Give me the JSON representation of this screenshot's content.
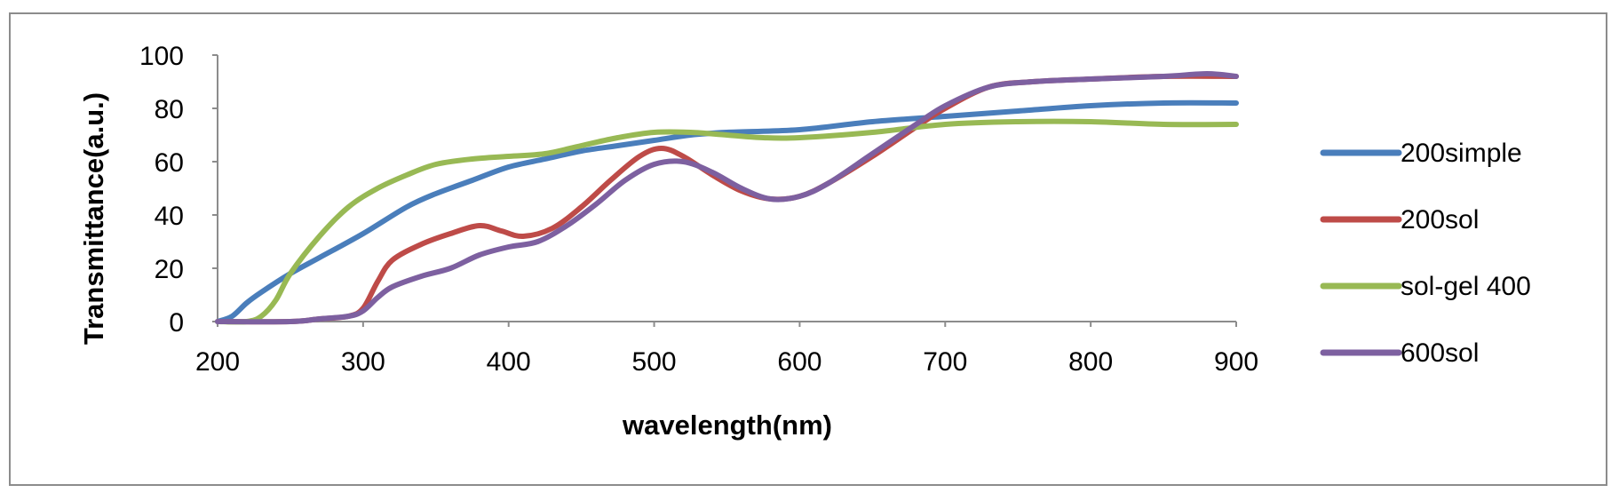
{
  "chart_data": {
    "type": "line",
    "xlabel": "wavelength(nm)",
    "ylabel": "Transmittance(a.u.)",
    "xlim": [
      200,
      900
    ],
    "ylim": [
      0,
      100
    ],
    "x_ticks": [
      200,
      300,
      400,
      500,
      600,
      700,
      800,
      900
    ],
    "y_ticks": [
      0,
      20,
      40,
      60,
      80,
      100
    ],
    "grid": false,
    "legend_position": "right",
    "series": [
      {
        "name": "200simple",
        "color": "#4a7ebb",
        "x": [
          200,
          210,
          220,
          230,
          250,
          270,
          300,
          330,
          350,
          375,
          400,
          425,
          450,
          475,
          500,
          525,
          550,
          600,
          650,
          700,
          750,
          800,
          850,
          900
        ],
        "y": [
          0,
          2,
          7,
          11,
          18,
          24,
          33,
          43,
          48,
          53,
          58,
          61,
          64,
          66,
          68,
          70,
          71,
          72,
          75,
          77,
          79,
          81,
          82,
          82
        ]
      },
      {
        "name": "200sol",
        "color": "#be4b48",
        "x": [
          200,
          250,
          270,
          290,
          300,
          310,
          320,
          340,
          360,
          380,
          395,
          410,
          430,
          450,
          470,
          490,
          505,
          520,
          540,
          560,
          580,
          600,
          620,
          650,
          680,
          700,
          730,
          760,
          800,
          850,
          900
        ],
        "y": [
          0,
          0,
          1,
          2,
          5,
          15,
          23,
          29,
          33,
          36,
          34,
          32,
          35,
          43,
          53,
          62,
          65,
          62,
          55,
          49,
          46,
          47,
          52,
          62,
          73,
          80,
          88,
          90,
          91,
          92,
          92
        ]
      },
      {
        "name": "sol-gel 400",
        "color": "#98b954",
        "x": [
          200,
          220,
          230,
          240,
          250,
          270,
          290,
          310,
          330,
          350,
          375,
          400,
          425,
          450,
          475,
          500,
          525,
          550,
          575,
          600,
          650,
          700,
          750,
          800,
          850,
          900
        ],
        "y": [
          0,
          0,
          2,
          8,
          18,
          32,
          43,
          50,
          55,
          59,
          61,
          62,
          63,
          66,
          69,
          71,
          71,
          70,
          69,
          69,
          71,
          74,
          75,
          75,
          74,
          74
        ]
      },
      {
        "name": "600sol",
        "color": "#7d60a0",
        "x": [
          200,
          250,
          270,
          290,
          300,
          310,
          320,
          340,
          360,
          380,
          400,
          420,
          440,
          460,
          480,
          500,
          520,
          540,
          560,
          580,
          600,
          620,
          650,
          680,
          700,
          730,
          760,
          800,
          850,
          880,
          900
        ],
        "y": [
          0,
          0,
          1,
          2,
          4,
          9,
          13,
          17,
          20,
          25,
          28,
          30,
          36,
          44,
          53,
          59,
          60,
          56,
          50,
          46,
          47,
          52,
          63,
          74,
          81,
          88,
          90,
          91,
          92,
          93,
          92
        ]
      }
    ]
  }
}
